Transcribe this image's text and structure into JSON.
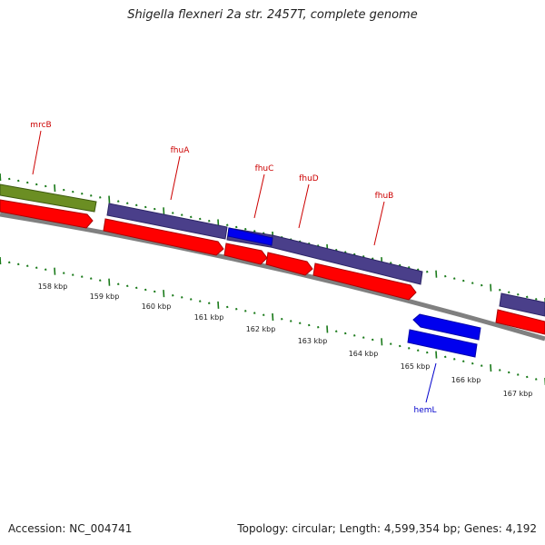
{
  "title": "Shigella flexneri 2a str. 2457T, complete genome",
  "footer": {
    "accession": "Accession: NC_004741",
    "summary": "Topology: circular; Length: 4,599,354 bp; Genes: 4,192"
  },
  "colors": {
    "backbone": "#808080",
    "tick": "#1a7a1a",
    "forward_gene": "#4a3f8a",
    "forward_gene_alt": "#6b8e23",
    "cds": "#ff0000",
    "highlight_gene": "#0000ee",
    "label_forward": "#cc0000",
    "label_reverse": "#0000cc"
  },
  "scale_labels": [
    "158 kbp",
    "159 kbp",
    "160 kbp",
    "161 kbp",
    "162 kbp",
    "163 kbp",
    "164 kbp",
    "165 kbp",
    "166 kbp",
    "167 kbp"
  ],
  "gene_labels": [
    {
      "name": "mrcB",
      "strand": "forward"
    },
    {
      "name": "fhuA",
      "strand": "forward"
    },
    {
      "name": "fhuC",
      "strand": "forward"
    },
    {
      "name": "fhuD",
      "strand": "forward"
    },
    {
      "name": "fhuB",
      "strand": "forward"
    },
    {
      "name": "hemL",
      "strand": "reverse"
    }
  ]
}
